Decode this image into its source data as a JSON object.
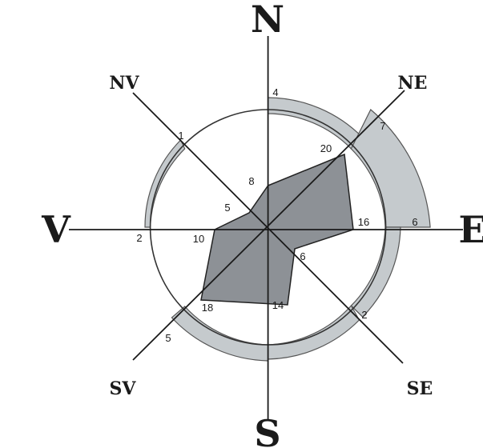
{
  "directions": {
    "N": "N",
    "NE": "NE",
    "E": "E",
    "SE": "SE",
    "S": "S",
    "SV": "SV",
    "V": "V",
    "NV": "NV"
  },
  "outer_ring_values": {
    "N": "4",
    "NE": "7",
    "E": "6",
    "SE": "2",
    "S": "",
    "SV": "5",
    "V": "2",
    "NV": "1"
  },
  "inner_polygon_values": {
    "N": "8",
    "NE": "20",
    "E": "16",
    "SE": "6",
    "S": "14",
    "SV": "18",
    "V": "10",
    "NV": "5"
  },
  "colors": {
    "axis": "#1a1a1a",
    "ring_fill": "#c5cacd",
    "polygon_fill": "#8d9196",
    "circle_stroke": "#333333"
  }
}
